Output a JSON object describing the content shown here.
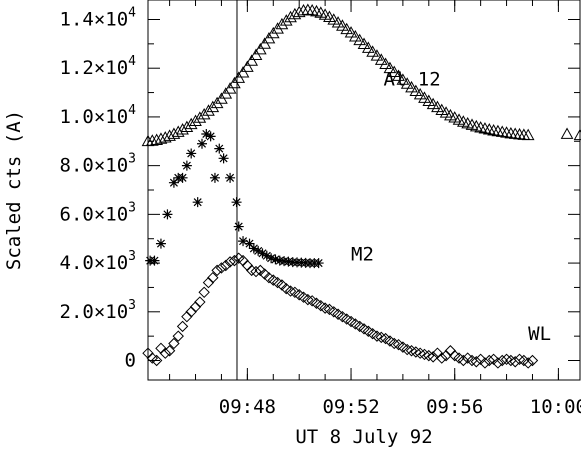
{
  "chart_data": {
    "type": "scatter",
    "title": "",
    "xlabel": "UT 8 July 92",
    "ylabel": "Scaled cts (A)",
    "xlim": [
      "09:44:10",
      "10:00:50"
    ],
    "ylim": [
      -800,
      14800
    ],
    "x_ticks": [
      "09:48",
      "09:52",
      "09:56",
      "10:00"
    ],
    "y_ticks": [
      {
        "value": 0,
        "base": "0",
        "exp": ""
      },
      {
        "value": 2000,
        "base": "2.0×10",
        "exp": "3"
      },
      {
        "value": 4000,
        "base": "4.0×10",
        "exp": "3"
      },
      {
        "value": 6000,
        "base": "6.0×10",
        "exp": "3"
      },
      {
        "value": 8000,
        "base": "8.0×10",
        "exp": "3"
      },
      {
        "value": 10000,
        "base": "1.0×10",
        "exp": "4"
      },
      {
        "value": 12000,
        "base": "1.2×10",
        "exp": "4"
      },
      {
        "value": 14000,
        "base": "1.4×10",
        "exp": "4"
      }
    ],
    "vertical_line_at": "09:47:36",
    "series": [
      {
        "name": "Al 12",
        "marker": "triangle",
        "label_at": [
          "09:53:15",
          11300
        ],
        "points": [
          [
            "09:44:10",
            9000
          ],
          [
            "09:44:20",
            9020
          ],
          [
            "09:44:30",
            9050
          ],
          [
            "09:44:40",
            9100
          ],
          [
            "09:44:50",
            9150
          ],
          [
            "09:45:00",
            9220
          ],
          [
            "09:45:10",
            9300
          ],
          [
            "09:45:20",
            9380
          ],
          [
            "09:45:30",
            9480
          ],
          [
            "09:45:40",
            9580
          ],
          [
            "09:45:50",
            9700
          ],
          [
            "09:46:00",
            9830
          ],
          [
            "09:46:10",
            9960
          ],
          [
            "09:46:20",
            10100
          ],
          [
            "09:46:30",
            10250
          ],
          [
            "09:46:40",
            10400
          ],
          [
            "09:46:50",
            10560
          ],
          [
            "09:47:00",
            10740
          ],
          [
            "09:47:10",
            10950
          ],
          [
            "09:47:20",
            11160
          ],
          [
            "09:47:30",
            11380
          ],
          [
            "09:47:40",
            11600
          ],
          [
            "09:47:50",
            11820
          ],
          [
            "09:48:00",
            12050
          ],
          [
            "09:48:10",
            12300
          ],
          [
            "09:48:20",
            12540
          ],
          [
            "09:48:30",
            12770
          ],
          [
            "09:48:40",
            13000
          ],
          [
            "09:48:50",
            13220
          ],
          [
            "09:49:00",
            13430
          ],
          [
            "09:49:10",
            13620
          ],
          [
            "09:49:20",
            13800
          ],
          [
            "09:49:30",
            13950
          ],
          [
            "09:49:40",
            14090
          ],
          [
            "09:49:50",
            14210
          ],
          [
            "09:50:00",
            14300
          ],
          [
            "09:50:10",
            14370
          ],
          [
            "09:50:20",
            14390
          ],
          [
            "09:50:30",
            14370
          ],
          [
            "09:50:40",
            14330
          ],
          [
            "09:50:50",
            14270
          ],
          [
            "09:51:00",
            14190
          ],
          [
            "09:51:10",
            14100
          ],
          [
            "09:51:20",
            13990
          ],
          [
            "09:51:30",
            13870
          ],
          [
            "09:51:40",
            13740
          ],
          [
            "09:51:50",
            13600
          ],
          [
            "09:52:00",
            13460
          ],
          [
            "09:52:10",
            13300
          ],
          [
            "09:52:20",
            13150
          ],
          [
            "09:52:30",
            12990
          ],
          [
            "09:52:40",
            12830
          ],
          [
            "09:52:50",
            12670
          ],
          [
            "09:53:00",
            12510
          ],
          [
            "09:53:10",
            12340
          ],
          [
            "09:53:20",
            12170
          ],
          [
            "09:53:30",
            12000
          ],
          [
            "09:53:40",
            11840
          ],
          [
            "09:53:50",
            11680
          ],
          [
            "09:54:00",
            11520
          ],
          [
            "09:54:10",
            11360
          ],
          [
            "09:54:20",
            11210
          ],
          [
            "09:54:30",
            11060
          ],
          [
            "09:54:40",
            10920
          ],
          [
            "09:54:50",
            10780
          ],
          [
            "09:55:00",
            10650
          ],
          [
            "09:55:10",
            10520
          ],
          [
            "09:55:20",
            10400
          ],
          [
            "09:55:30",
            10280
          ],
          [
            "09:55:40",
            10170
          ],
          [
            "09:55:50",
            10060
          ],
          [
            "09:56:00",
            9970
          ],
          [
            "09:56:10",
            9880
          ],
          [
            "09:56:20",
            9800
          ],
          [
            "09:56:30",
            9730
          ],
          [
            "09:56:40",
            9670
          ],
          [
            "09:56:50",
            9610
          ],
          [
            "09:57:00",
            9560
          ],
          [
            "09:57:10",
            9520
          ],
          [
            "09:57:20",
            9480
          ],
          [
            "09:57:30",
            9440
          ],
          [
            "09:57:40",
            9410
          ],
          [
            "09:57:50",
            9380
          ],
          [
            "09:58:00",
            9350
          ],
          [
            "09:58:10",
            9320
          ],
          [
            "09:58:20",
            9300
          ],
          [
            "09:58:30",
            9280
          ],
          [
            "09:58:40",
            9260
          ],
          [
            "09:58:50",
            9250
          ],
          [
            "10:00:20",
            9300
          ],
          [
            "10:00:50",
            9250
          ]
        ]
      },
      {
        "name": "M2",
        "marker": "asterisk",
        "label_at": [
          "09:52:00",
          4100
        ],
        "points": [
          [
            "09:44:15",
            4100
          ],
          [
            "09:44:25",
            4100
          ],
          [
            "09:44:40",
            4800
          ],
          [
            "09:44:55",
            6000
          ],
          [
            "09:45:10",
            7300
          ],
          [
            "09:45:20",
            7500
          ],
          [
            "09:45:30",
            7500
          ],
          [
            "09:45:40",
            8000
          ],
          [
            "09:45:50",
            8500
          ],
          [
            "09:46:05",
            6500
          ],
          [
            "09:46:15",
            8900
          ],
          [
            "09:46:25",
            9300
          ],
          [
            "09:46:35",
            9200
          ],
          [
            "09:46:45",
            7500
          ],
          [
            "09:46:55",
            8700
          ],
          [
            "09:47:05",
            8300
          ],
          [
            "09:47:20",
            7500
          ],
          [
            "09:47:35",
            6500
          ],
          [
            "09:47:40",
            5500
          ],
          [
            "09:47:50",
            4900
          ],
          [
            "09:48:05",
            4800
          ],
          [
            "09:48:15",
            4600
          ],
          [
            "09:48:25",
            4500
          ],
          [
            "09:48:35",
            4400
          ],
          [
            "09:48:45",
            4300
          ],
          [
            "09:48:55",
            4200
          ],
          [
            "09:49:05",
            4150
          ],
          [
            "09:49:15",
            4100
          ],
          [
            "09:49:25",
            4080
          ],
          [
            "09:49:35",
            4060
          ],
          [
            "09:49:45",
            4040
          ],
          [
            "09:49:55",
            4030
          ],
          [
            "09:50:05",
            4020
          ],
          [
            "09:50:15",
            4010
          ],
          [
            "09:50:25",
            4000
          ],
          [
            "09:50:35",
            4000
          ],
          [
            "09:50:45",
            4000
          ]
        ]
      },
      {
        "name": "WL",
        "marker": "diamond",
        "label_at": [
          "09:58:50",
          850
        ],
        "points": [
          [
            "09:44:10",
            300
          ],
          [
            "09:44:20",
            100
          ],
          [
            "09:44:30",
            0
          ],
          [
            "09:44:40",
            500
          ],
          [
            "09:44:50",
            300
          ],
          [
            "09:45:00",
            400
          ],
          [
            "09:45:10",
            700
          ],
          [
            "09:45:20",
            1000
          ],
          [
            "09:45:30",
            1400
          ],
          [
            "09:45:40",
            1800
          ],
          [
            "09:45:50",
            2000
          ],
          [
            "09:46:00",
            2200
          ],
          [
            "09:46:10",
            2400
          ],
          [
            "09:46:20",
            2800
          ],
          [
            "09:46:30",
            3200
          ],
          [
            "09:46:40",
            3400
          ],
          [
            "09:46:50",
            3700
          ],
          [
            "09:47:00",
            3800
          ],
          [
            "09:47:10",
            3900
          ],
          [
            "09:47:20",
            4050
          ],
          [
            "09:47:30",
            4100
          ],
          [
            "09:47:40",
            4200
          ],
          [
            "09:47:50",
            4100
          ],
          [
            "09:48:00",
            3900
          ],
          [
            "09:48:10",
            3700
          ],
          [
            "09:48:20",
            3650
          ],
          [
            "09:48:30",
            3700
          ],
          [
            "09:48:40",
            3550
          ],
          [
            "09:48:50",
            3400
          ],
          [
            "09:49:00",
            3300
          ],
          [
            "09:49:10",
            3200
          ],
          [
            "09:49:20",
            3100
          ],
          [
            "09:49:30",
            2950
          ],
          [
            "09:49:40",
            2850
          ],
          [
            "09:49:50",
            2800
          ],
          [
            "09:50:00",
            2700
          ],
          [
            "09:50:10",
            2600
          ],
          [
            "09:50:20",
            2500
          ],
          [
            "09:50:30",
            2450
          ],
          [
            "09:50:40",
            2350
          ],
          [
            "09:50:50",
            2250
          ],
          [
            "09:51:00",
            2150
          ],
          [
            "09:51:10",
            2100
          ],
          [
            "09:51:20",
            2000
          ],
          [
            "09:51:30",
            1900
          ],
          [
            "09:51:40",
            1800
          ],
          [
            "09:51:50",
            1700
          ],
          [
            "09:52:00",
            1600
          ],
          [
            "09:52:10",
            1500
          ],
          [
            "09:52:20",
            1400
          ],
          [
            "09:52:30",
            1300
          ],
          [
            "09:52:40",
            1200
          ],
          [
            "09:52:50",
            1100
          ],
          [
            "09:53:00",
            1000
          ],
          [
            "09:53:10",
            950
          ],
          [
            "09:53:20",
            900
          ],
          [
            "09:53:30",
            800
          ],
          [
            "09:53:40",
            700
          ],
          [
            "09:53:50",
            650
          ],
          [
            "09:54:00",
            550
          ],
          [
            "09:54:10",
            450
          ],
          [
            "09:54:20",
            400
          ],
          [
            "09:54:30",
            350
          ],
          [
            "09:54:40",
            300
          ],
          [
            "09:54:50",
            250
          ],
          [
            "09:55:00",
            200
          ],
          [
            "09:55:10",
            150
          ],
          [
            "09:55:20",
            300
          ],
          [
            "09:55:30",
            100
          ],
          [
            "09:55:40",
            200
          ],
          [
            "09:55:50",
            400
          ],
          [
            "09:56:00",
            200
          ],
          [
            "09:56:10",
            100
          ],
          [
            "09:56:20",
            0
          ],
          [
            "09:56:30",
            100
          ],
          [
            "09:56:40",
            0
          ],
          [
            "09:56:50",
            -50
          ],
          [
            "09:57:00",
            50
          ],
          [
            "09:57:10",
            -100
          ],
          [
            "09:57:20",
            0
          ],
          [
            "09:57:30",
            50
          ],
          [
            "09:57:40",
            -100
          ],
          [
            "09:57:50",
            0
          ],
          [
            "09:58:00",
            50
          ],
          [
            "09:58:10",
            0
          ],
          [
            "09:58:20",
            -50
          ],
          [
            "09:58:30",
            50
          ],
          [
            "09:58:40",
            0
          ],
          [
            "09:58:50",
            -100
          ],
          [
            "09:59:00",
            0
          ]
        ]
      }
    ]
  }
}
